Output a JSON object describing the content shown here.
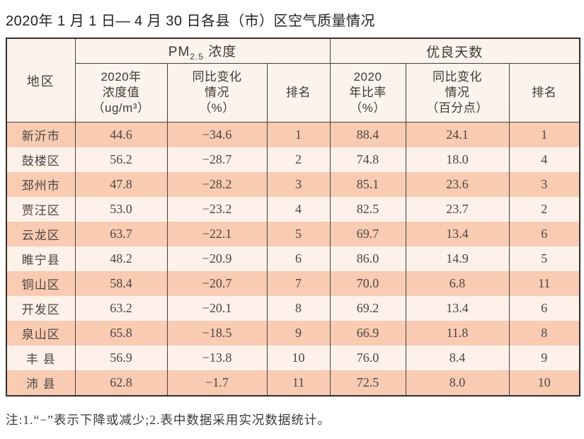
{
  "page": {
    "title": "2020年 1 月 1 日— 4 月 30 日各县（市）区空气质量情况",
    "footnote": "注:1.“−”表示下降或减少;2.表中数据采用实况数据统计。"
  },
  "colors": {
    "row_stripe": "#f9cbb3",
    "row_alt": "#fdf1e9",
    "header_bg": "#fcf3ec",
    "border": "#45403c"
  },
  "table": {
    "region_header": "地区",
    "group_headers": {
      "pm25_prefix": "PM",
      "pm25_sub": "2.5",
      "pm25_suffix": " 浓度",
      "good_days": "优良天数"
    },
    "sub_headers": {
      "pm_value": "2020年\n浓度值\n（ug/m³）",
      "pm_change": "同比变化\n情况\n（%）",
      "pm_rank": "排名",
      "good_rate": "2020\n年比率\n（%）",
      "good_change": "同比变化\n情况\n（百分点）",
      "good_rank": "排名"
    },
    "rows": [
      {
        "region": "新沂市",
        "pm_value": "44.6",
        "pm_change": "−34.6",
        "pm_rank": "1",
        "good_rate": "88.4",
        "good_change": "24.1",
        "good_rank": "1"
      },
      {
        "region": "鼓楼区",
        "pm_value": "56.2",
        "pm_change": "−28.7",
        "pm_rank": "2",
        "good_rate": "74.8",
        "good_change": "18.0",
        "good_rank": "4"
      },
      {
        "region": "邳州市",
        "pm_value": "47.8",
        "pm_change": "−28.2",
        "pm_rank": "3",
        "good_rate": "85.1",
        "good_change": "23.6",
        "good_rank": "3"
      },
      {
        "region": "贾汪区",
        "pm_value": "53.0",
        "pm_change": "−23.2",
        "pm_rank": "4",
        "good_rate": "82.5",
        "good_change": "23.7",
        "good_rank": "2"
      },
      {
        "region": "云龙区",
        "pm_value": "63.7",
        "pm_change": "−22.1",
        "pm_rank": "5",
        "good_rate": "69.7",
        "good_change": "13.4",
        "good_rank": "6"
      },
      {
        "region": "睢宁县",
        "pm_value": "48.2",
        "pm_change": "−20.9",
        "pm_rank": "6",
        "good_rate": "86.0",
        "good_change": "14.9",
        "good_rank": "5"
      },
      {
        "region": "铜山区",
        "pm_value": "58.4",
        "pm_change": "−20.7",
        "pm_rank": "7",
        "good_rate": "70.0",
        "good_change": "6.8",
        "good_rank": "11"
      },
      {
        "region": "开发区",
        "pm_value": "63.2",
        "pm_change": "−20.1",
        "pm_rank": "8",
        "good_rate": "69.2",
        "good_change": "13.4",
        "good_rank": "6"
      },
      {
        "region": "泉山区",
        "pm_value": "65.8",
        "pm_change": "−18.5",
        "pm_rank": "9",
        "good_rate": "66.9",
        "good_change": "11.8",
        "good_rank": "8"
      },
      {
        "region": "丰 县",
        "pm_value": "56.9",
        "pm_change": "−13.8",
        "pm_rank": "10",
        "good_rate": "76.0",
        "good_change": "8.4",
        "good_rank": "9"
      },
      {
        "region": "沛 县",
        "pm_value": "62.8",
        "pm_change": "−1.7",
        "pm_rank": "11",
        "good_rate": "72.5",
        "good_change": "8.0",
        "good_rank": "10"
      }
    ]
  }
}
